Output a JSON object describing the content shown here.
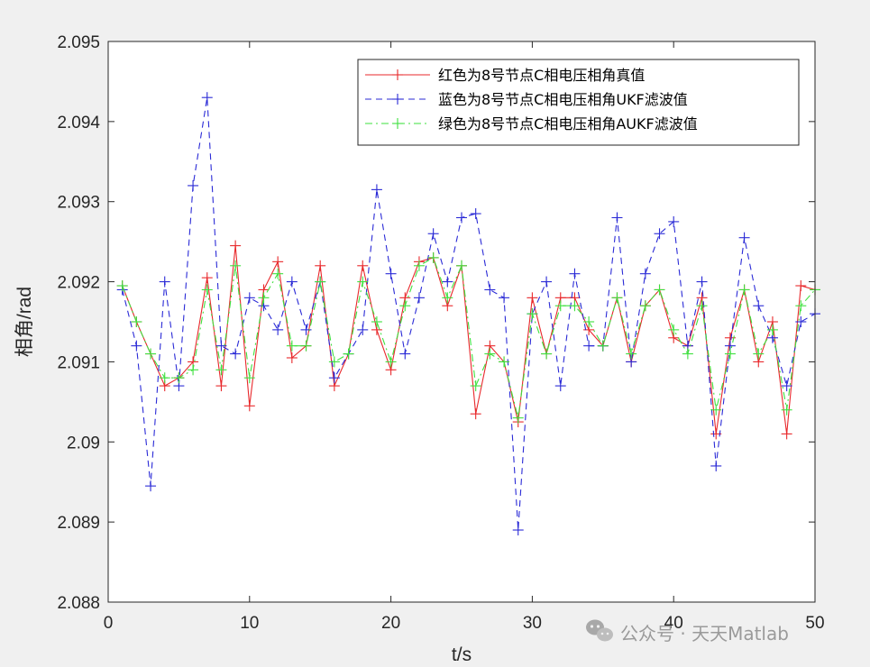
{
  "chart_data": {
    "type": "line",
    "title": "",
    "xlabel": "t/s",
    "ylabel": "相角/rad",
    "xlim": [
      0,
      50
    ],
    "ylim": [
      2.088,
      2.095
    ],
    "x_ticks": [
      "0",
      "10",
      "20",
      "30",
      "40",
      "50"
    ],
    "y_ticks": [
      "2.088",
      "2.089",
      "2.09",
      "2.091",
      "2.092",
      "2.093",
      "2.094",
      "2.095"
    ],
    "legend_position": "top-right",
    "grid": false,
    "x": [
      1,
      2,
      3,
      4,
      5,
      6,
      7,
      8,
      9,
      10,
      11,
      12,
      13,
      14,
      15,
      16,
      17,
      18,
      19,
      20,
      21,
      22,
      23,
      24,
      25,
      26,
      27,
      28,
      29,
      30,
      31,
      32,
      33,
      34,
      35,
      36,
      37,
      38,
      39,
      40,
      41,
      42,
      43,
      44,
      45,
      46,
      47,
      48,
      49,
      50
    ],
    "series": [
      {
        "name": "红色为8号节点C相电压相角真值",
        "color": "#e8282b",
        "dash": "solid",
        "values": [
          2.09195,
          2.0915,
          2.0911,
          2.0907,
          2.0908,
          2.091,
          2.09205,
          2.0907,
          2.09245,
          2.09045,
          2.0919,
          2.09225,
          2.09105,
          2.0912,
          2.0922,
          2.0907,
          2.0911,
          2.0922,
          2.0914,
          2.0909,
          2.0918,
          2.09225,
          2.0923,
          2.0917,
          2.0922,
          2.09035,
          2.0912,
          2.091,
          2.09025,
          2.0918,
          2.0911,
          2.0918,
          2.0918,
          2.0914,
          2.0912,
          2.0918,
          2.091,
          2.0917,
          2.0919,
          2.0913,
          2.0912,
          2.0918,
          2.0901,
          2.0913,
          2.0919,
          2.091,
          2.0915,
          2.0901,
          2.09195,
          2.0919
        ]
      },
      {
        "name": "蓝色为8号节点C相电压相角UKF滤波值",
        "color": "#2a2ad6",
        "dash": "dashed",
        "values": [
          2.0919,
          2.0912,
          2.08945,
          2.092,
          2.0907,
          2.0932,
          2.0943,
          2.0912,
          2.0911,
          2.0918,
          2.0917,
          2.0914,
          2.092,
          2.0914,
          2.092,
          2.0908,
          2.0911,
          2.0914,
          2.09315,
          2.0921,
          2.0911,
          2.0918,
          2.0926,
          2.092,
          2.0928,
          2.09285,
          2.0919,
          2.0918,
          2.0889,
          2.0916,
          2.092,
          2.0907,
          2.0921,
          2.0912,
          2.0912,
          2.0928,
          2.091,
          2.0921,
          2.0926,
          2.09275,
          2.0912,
          2.092,
          2.0897,
          2.0912,
          2.09255,
          2.0917,
          2.0913,
          2.0907,
          2.0915,
          2.0916
        ]
      },
      {
        "name": "绿色为8号节点C相电压相角AUKF滤波值",
        "color": "#3ee03e",
        "dash": "dashdot",
        "values": [
          2.09195,
          2.0915,
          2.0911,
          2.0908,
          2.0908,
          2.0909,
          2.0919,
          2.0909,
          2.0922,
          2.0908,
          2.0918,
          2.0921,
          2.0912,
          2.0912,
          2.092,
          2.091,
          2.0911,
          2.092,
          2.0915,
          2.091,
          2.0917,
          2.0922,
          2.0923,
          2.0918,
          2.0922,
          2.0907,
          2.0911,
          2.091,
          2.0903,
          2.0916,
          2.0911,
          2.0917,
          2.0917,
          2.0915,
          2.0912,
          2.0918,
          2.0911,
          2.0917,
          2.0919,
          2.0914,
          2.0911,
          2.0917,
          2.0904,
          2.0911,
          2.0919,
          2.0911,
          2.0914,
          2.0904,
          2.0917,
          2.0919
        ]
      }
    ]
  },
  "watermark": {
    "icon": "wechat-icon",
    "text": "公众号 · 天天Matlab"
  }
}
